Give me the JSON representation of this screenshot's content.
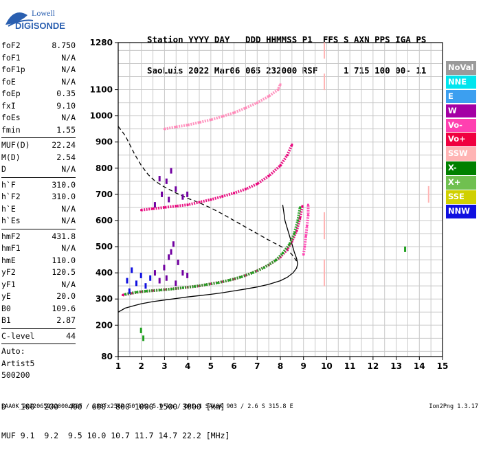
{
  "logo": {
    "line1": "Lowell",
    "line2": "DIGISONDE"
  },
  "header": {
    "row1": "Station YYYY DAY   DDD HHMMSS P1  FFS S AXN PPS IGA PS",
    "row2": "SaoLuis 2022 Mar06 065 232000 RSF     1 715 100 00- 11"
  },
  "params": {
    "group1": [
      {
        "label": "foF2",
        "value": "8.750"
      },
      {
        "label": "foF1",
        "value": "N/A"
      },
      {
        "label": "foF1p",
        "value": "N/A"
      },
      {
        "label": "foE",
        "value": "N/A"
      },
      {
        "label": "foEp",
        "value": "0.35"
      },
      {
        "label": "fxI",
        "value": "9.10"
      },
      {
        "label": "foEs",
        "value": "N/A"
      },
      {
        "label": "fmin",
        "value": "1.55"
      }
    ],
    "group2": [
      {
        "label": "MUF(D)",
        "value": "22.24"
      },
      {
        "label": "M(D)",
        "value": "2.54"
      },
      {
        "label": "D",
        "value": "N/A"
      }
    ],
    "group3": [
      {
        "label": "h`F",
        "value": "310.0"
      },
      {
        "label": "h`F2",
        "value": "310.0"
      },
      {
        "label": "h`E",
        "value": "N/A"
      },
      {
        "label": "h`Es",
        "value": "N/A"
      }
    ],
    "group4": [
      {
        "label": "hmF2",
        "value": "431.8"
      },
      {
        "label": "hmF1",
        "value": "N/A"
      },
      {
        "label": "hmE",
        "value": "110.0"
      },
      {
        "label": "yF2",
        "value": "120.5"
      },
      {
        "label": "yF1",
        "value": "N/A"
      },
      {
        "label": "yE",
        "value": "20.0"
      },
      {
        "label": "B0",
        "value": "109.6"
      },
      {
        "label": "B1",
        "value": "2.87"
      }
    ],
    "group5": [
      {
        "label": "C-level",
        "value": "44"
      }
    ],
    "auto": [
      "Auto:",
      "Artist5",
      "500200"
    ]
  },
  "legend": [
    {
      "label": "NoVal",
      "color": "#9a9a9a"
    },
    {
      "label": "NNE",
      "color": "#00e5ee"
    },
    {
      "label": "E",
      "color": "#3c9ff0"
    },
    {
      "label": "W",
      "color": "#a400a4"
    },
    {
      "label": "Vo-",
      "color": "#ff40b0"
    },
    {
      "label": "Vo+",
      "color": "#f00040"
    },
    {
      "label": "SSW",
      "color": "#ffb4b4"
    },
    {
      "label": "X-",
      "color": "#008000"
    },
    {
      "label": "X+",
      "color": "#70c050"
    },
    {
      "label": "SSE",
      "color": "#d0d000"
    },
    {
      "label": "NNW",
      "color": "#1010e0"
    }
  ],
  "muf_table": {
    "d_label": "D",
    "d_values": [
      "100",
      "200",
      "400",
      "600",
      "800",
      "1000",
      "1500",
      "3000"
    ],
    "d_unit": "[km]",
    "muf_label": "MUF",
    "muf_values": [
      "9.1",
      "9.2",
      "9.5",
      "10.0",
      "10.7",
      "11.7",
      "14.7",
      "22.2"
    ],
    "muf_unit": "[MHz]"
  },
  "footer": {
    "left": "SAA0K_2022065232000.RSF / 280fx256h 50 kHz 5.0 km / DPS-4 SAA0K 903 / 2.6 S 315.8 E",
    "right": "Ion2Png 1.3.17"
  },
  "chart_data": {
    "type": "scatter",
    "xlim": [
      1,
      15
    ],
    "ylim": [
      80,
      1280
    ],
    "x_ticks": [
      1,
      2,
      3,
      4,
      5,
      6,
      7,
      8,
      9,
      10,
      11,
      12,
      13,
      14,
      15
    ],
    "y_ticks": [
      80,
      200,
      300,
      400,
      500,
      600,
      700,
      800,
      900,
      1000,
      1100,
      1280
    ],
    "x_grid": [
      1,
      1.5,
      2,
      2.5,
      3,
      3.5,
      4,
      4.5,
      5,
      5.5,
      6,
      6.5,
      7,
      7.5,
      8,
      8.5,
      9,
      9.5,
      10,
      10.5,
      11,
      11.5,
      12,
      12.5,
      13,
      13.5,
      14,
      14.5,
      15
    ],
    "y_grid": [
      100,
      150,
      200,
      250,
      300,
      350,
      400,
      450,
      500,
      550,
      600,
      650,
      700,
      750,
      800,
      850,
      900,
      950,
      1000,
      1050,
      1100,
      1150,
      1200,
      1250
    ],
    "grid": true,
    "series": [
      {
        "style": "solid-line",
        "color": "#000000",
        "points": [
          [
            1.0,
            250
          ],
          [
            1.3,
            265
          ],
          [
            1.7,
            275
          ],
          [
            2.0,
            282
          ],
          [
            2.5,
            290
          ],
          [
            3.0,
            296
          ],
          [
            3.5,
            302
          ],
          [
            4.0,
            308
          ],
          [
            4.5,
            313
          ],
          [
            5.0,
            318
          ],
          [
            5.5,
            324
          ],
          [
            6.0,
            331
          ],
          [
            6.5,
            338
          ],
          [
            7.0,
            346
          ],
          [
            7.5,
            356
          ],
          [
            8.0,
            370
          ],
          [
            8.3,
            383
          ],
          [
            8.55,
            400
          ],
          [
            8.7,
            418
          ],
          [
            8.75,
            435
          ],
          [
            8.7,
            455
          ],
          [
            8.6,
            480
          ],
          [
            8.5,
            510
          ],
          [
            8.4,
            540
          ],
          [
            8.3,
            570
          ],
          [
            8.2,
            600
          ],
          [
            8.15,
            630
          ],
          [
            8.1,
            660
          ]
        ]
      },
      {
        "style": "dashed-line",
        "color": "#000000",
        "points": [
          [
            1.0,
            960
          ],
          [
            1.3,
            925
          ],
          [
            1.5,
            890
          ],
          [
            1.7,
            855
          ],
          [
            2.0,
            810
          ],
          [
            2.3,
            775
          ],
          [
            2.6,
            750
          ],
          [
            3.0,
            728
          ],
          [
            3.5,
            705
          ],
          [
            4.0,
            685
          ],
          [
            4.5,
            668
          ],
          [
            5.0,
            648
          ],
          [
            5.5,
            625
          ],
          [
            6.0,
            600
          ],
          [
            6.5,
            575
          ],
          [
            7.0,
            550
          ],
          [
            7.5,
            525
          ],
          [
            8.0,
            502
          ],
          [
            8.3,
            488
          ],
          [
            8.5,
            470
          ],
          [
            8.7,
            445
          ]
        ]
      },
      {
        "style": "trace",
        "color": "#e8007a",
        "points": [
          [
            1.2,
            315
          ],
          [
            1.6,
            322
          ],
          [
            2.0,
            328
          ],
          [
            2.5,
            332
          ],
          [
            3.0,
            336
          ],
          [
            3.5,
            340
          ],
          [
            4.0,
            345
          ],
          [
            4.5,
            350
          ],
          [
            5.0,
            358
          ],
          [
            5.5,
            366
          ],
          [
            6.0,
            376
          ],
          [
            6.5,
            390
          ],
          [
            7.0,
            408
          ],
          [
            7.5,
            430
          ],
          [
            8.0,
            460
          ],
          [
            8.3,
            490
          ],
          [
            8.5,
            520
          ],
          [
            8.7,
            560
          ],
          [
            8.85,
            610
          ],
          [
            8.95,
            655
          ]
        ]
      },
      {
        "style": "trace",
        "color": "#20a020",
        "points": [
          [
            1.3,
            318
          ],
          [
            1.8,
            326
          ],
          [
            2.2,
            330
          ],
          [
            2.8,
            334
          ],
          [
            3.3,
            338
          ],
          [
            3.8,
            343
          ],
          [
            4.3,
            348
          ],
          [
            4.8,
            355
          ],
          [
            5.3,
            362
          ],
          [
            5.8,
            372
          ],
          [
            6.3,
            384
          ],
          [
            6.8,
            400
          ],
          [
            7.3,
            420
          ],
          [
            7.8,
            448
          ],
          [
            8.1,
            475
          ],
          [
            8.4,
            510
          ],
          [
            8.6,
            550
          ],
          [
            8.75,
            600
          ],
          [
            8.85,
            650
          ]
        ]
      },
      {
        "style": "trace",
        "color": "#e8007a",
        "points": [
          [
            2.0,
            640
          ],
          [
            2.5,
            645
          ],
          [
            3.0,
            650
          ],
          [
            3.5,
            655
          ],
          [
            4.0,
            660
          ],
          [
            4.5,
            670
          ],
          [
            5.0,
            680
          ],
          [
            5.5,
            692
          ],
          [
            6.0,
            705
          ],
          [
            6.5,
            720
          ],
          [
            7.0,
            740
          ],
          [
            7.5,
            770
          ],
          [
            8.0,
            810
          ],
          [
            8.3,
            850
          ],
          [
            8.5,
            890
          ]
        ]
      },
      {
        "style": "trace",
        "color": "#ff88b8",
        "points": [
          [
            3.0,
            950
          ],
          [
            3.5,
            958
          ],
          [
            4.0,
            965
          ],
          [
            4.5,
            975
          ],
          [
            5.0,
            985
          ],
          [
            5.5,
            998
          ],
          [
            6.0,
            1012
          ],
          [
            6.5,
            1030
          ],
          [
            7.0,
            1050
          ],
          [
            7.5,
            1075
          ],
          [
            7.9,
            1100
          ],
          [
            8.0,
            1120
          ]
        ]
      },
      {
        "style": "trace",
        "color": "#ff40b0",
        "points": [
          [
            9.0,
            470
          ],
          [
            9.05,
            500
          ],
          [
            9.1,
            540
          ],
          [
            9.15,
            580
          ],
          [
            9.2,
            620
          ],
          [
            9.2,
            660
          ]
        ]
      },
      {
        "style": "cluster",
        "color": "#7000a0",
        "points": [
          [
            2.8,
            370
          ],
          [
            3.0,
            420
          ],
          [
            3.2,
            460
          ],
          [
            3.4,
            510
          ],
          [
            3.6,
            440
          ],
          [
            3.8,
            400
          ],
          [
            3.1,
            380
          ],
          [
            3.5,
            360
          ],
          [
            4.0,
            390
          ],
          [
            2.6,
            400
          ],
          [
            3.3,
            480
          ]
        ]
      },
      {
        "style": "cluster",
        "color": "#1010e0",
        "points": [
          [
            1.5,
            330
          ],
          [
            1.8,
            360
          ],
          [
            2.0,
            390
          ],
          [
            1.6,
            410
          ],
          [
            2.2,
            350
          ],
          [
            1.4,
            370
          ],
          [
            2.4,
            380
          ]
        ]
      },
      {
        "style": "cluster",
        "color": "#7000a0",
        "points": [
          [
            2.6,
            660
          ],
          [
            2.9,
            700
          ],
          [
            3.1,
            750
          ],
          [
            3.3,
            790
          ],
          [
            3.5,
            720
          ],
          [
            3.8,
            690
          ],
          [
            3.2,
            680
          ],
          [
            2.8,
            760
          ],
          [
            4.0,
            700
          ]
        ]
      },
      {
        "style": "vdash",
        "color": "#ffb4b4",
        "points": [
          [
            9.9,
            380
          ],
          [
            9.9,
            420
          ],
          [
            9.9,
            560
          ],
          [
            9.9,
            600
          ],
          [
            9.9,
            1130
          ],
          [
            9.9,
            1250
          ],
          [
            14.4,
            700
          ]
        ]
      },
      {
        "style": "cluster",
        "color": "#20a020",
        "points": [
          [
            13.4,
            490
          ],
          [
            2.0,
            180
          ],
          [
            2.1,
            150
          ]
        ]
      }
    ]
  }
}
